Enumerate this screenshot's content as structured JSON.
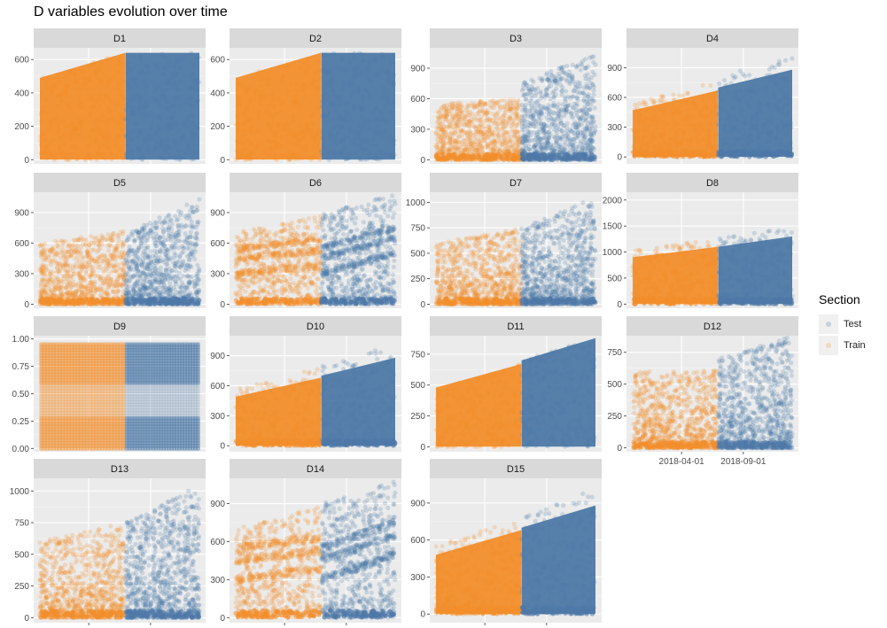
{
  "title": "D variables evolution over time",
  "legend": {
    "title": "Section",
    "entries": [
      {
        "label": "Test",
        "color": "#4e79a7"
      },
      {
        "label": "Train",
        "color": "#f28e2b"
      }
    ]
  },
  "chart_data": {
    "type": "scatter",
    "facet_layout": "4 columns, free y scales, shared time x axis",
    "x_tick_labels": [
      "2018-04-01",
      "2018-09-01"
    ],
    "x_range": [
      "2017-12-01",
      "2018-12-31"
    ],
    "split_date": "2018-07-01",
    "series": [
      {
        "name": "Train",
        "color": "#f28e2b",
        "x_range": [
          "2017-12-01",
          "2018-06-30"
        ]
      },
      {
        "name": "Test",
        "color": "#4e79a7",
        "x_range": [
          "2018-07-01",
          "2018-12-31"
        ]
      }
    ],
    "panels": [
      {
        "label": "D1",
        "ylim": [
          -25,
          670
        ],
        "yticks": [
          0,
          200,
          400,
          600
        ],
        "ytick_labels": [
          "0",
          "200",
          "400",
          "600"
        ],
        "pattern": "solid_wedge",
        "train_max": [
          490,
          640
        ],
        "test_max": [
          640,
          640
        ],
        "cap": 640
      },
      {
        "label": "D2",
        "ylim": [
          -25,
          670
        ],
        "yticks": [
          0,
          200,
          400,
          600
        ],
        "ytick_labels": [
          "0",
          "200",
          "400",
          "600"
        ],
        "pattern": "solid_wedge",
        "train_max": [
          490,
          640
        ],
        "test_max": [
          640,
          640
        ],
        "cap": 640
      },
      {
        "label": "D3",
        "ylim": [
          -40,
          1100
        ],
        "yticks": [
          0,
          300,
          600,
          900
        ],
        "ytick_labels": [
          "0",
          "300",
          "600",
          "900"
        ],
        "pattern": "sparse",
        "train_max": [
          550,
          600
        ],
        "test_max": [
          750,
          1050
        ]
      },
      {
        "label": "D4",
        "ylim": [
          -70,
          1100
        ],
        "yticks": [
          0,
          300,
          600,
          900
        ],
        "ytick_labels": [
          "0",
          "300",
          "600",
          "900"
        ],
        "pattern": "wedge_sparse",
        "train_max": [
          470,
          670
        ],
        "test_max": [
          700,
          880
        ],
        "cap": 1050
      },
      {
        "label": "D5",
        "ylim": [
          -40,
          1100
        ],
        "yticks": [
          0,
          300,
          600,
          900
        ],
        "ytick_labels": [
          "0",
          "300",
          "600",
          "900"
        ],
        "pattern": "sparse",
        "train_max": [
          600,
          720
        ],
        "test_max": [
          700,
          1050
        ]
      },
      {
        "label": "D6",
        "ylim": [
          -40,
          1100
        ],
        "yticks": [
          0,
          300,
          600,
          900
        ],
        "ytick_labels": [
          "0",
          "300",
          "600",
          "900"
        ],
        "pattern": "bands",
        "train_max": [
          700,
          880
        ],
        "test_max": [
          900,
          1080
        ]
      },
      {
        "label": "D7",
        "ylim": [
          -40,
          1100
        ],
        "yticks": [
          0,
          250,
          500,
          750,
          1000
        ],
        "ytick_labels": [
          "0",
          "250",
          "500",
          "750",
          "1000"
        ],
        "pattern": "sparse",
        "train_max": [
          600,
          750
        ],
        "test_max": [
          750,
          1050
        ]
      },
      {
        "label": "D8",
        "ylim": [
          -80,
          2150
        ],
        "yticks": [
          0,
          500,
          1000,
          1500,
          2000
        ],
        "ytick_labels": [
          "0",
          "500",
          "1000",
          "1500",
          "2000"
        ],
        "pattern": "wedge_sparse",
        "train_max": [
          900,
          1100
        ],
        "test_max": [
          1100,
          1300
        ],
        "cap": 2000
      },
      {
        "label": "D9",
        "ylim": [
          -0.03,
          1.03
        ],
        "yticks": [
          0,
          0.25,
          0.5,
          0.75,
          1.0
        ],
        "ytick_labels": [
          "0.00",
          "0.25",
          "0.50",
          "0.75",
          "1.00"
        ],
        "pattern": "grid"
      },
      {
        "label": "D10",
        "ylim": [
          -60,
          1100
        ],
        "yticks": [
          0,
          300,
          600,
          900
        ],
        "ytick_labels": [
          "0",
          "300",
          "600",
          "900"
        ],
        "pattern": "wedge_sparse",
        "train_max": [
          490,
          680
        ],
        "test_max": [
          700,
          880
        ],
        "cap": 1050
      },
      {
        "label": "D11",
        "ylim": [
          -40,
          900
        ],
        "yticks": [
          0,
          250,
          500,
          750
        ],
        "ytick_labels": [
          "0",
          "250",
          "500",
          "750"
        ],
        "pattern": "solid_wedge",
        "train_max": [
          480,
          670
        ],
        "test_max": [
          700,
          880
        ]
      },
      {
        "label": "D12",
        "ylim": [
          -30,
          880
        ],
        "yticks": [
          0,
          250,
          500,
          750
        ],
        "ytick_labels": [
          "0",
          "250",
          "500",
          "750"
        ],
        "pattern": "sparse",
        "train_max": [
          600,
          620
        ],
        "test_max": [
          700,
          880
        ]
      },
      {
        "label": "D13",
        "ylim": [
          -40,
          1100
        ],
        "yticks": [
          0,
          250,
          500,
          750,
          1000
        ],
        "ytick_labels": [
          "0",
          "250",
          "500",
          "750",
          "1000"
        ],
        "pattern": "sparse",
        "train_max": [
          600,
          750
        ],
        "test_max": [
          750,
          1050
        ]
      },
      {
        "label": "D14",
        "ylim": [
          -40,
          1100
        ],
        "yticks": [
          0,
          300,
          600,
          900
        ],
        "ytick_labels": [
          "0",
          "300",
          "600",
          "900"
        ],
        "pattern": "bands",
        "train_max": [
          700,
          880
        ],
        "test_max": [
          900,
          1080
        ]
      },
      {
        "label": "D15",
        "ylim": [
          -70,
          1100
        ],
        "yticks": [
          0,
          300,
          600,
          900
        ],
        "ytick_labels": [
          "0",
          "300",
          "600",
          "900"
        ],
        "pattern": "wedge_sparse",
        "train_max": [
          480,
          680
        ],
        "test_max": [
          700,
          880
        ],
        "cap": 1050
      }
    ],
    "grid": true,
    "legend_position": "right"
  }
}
